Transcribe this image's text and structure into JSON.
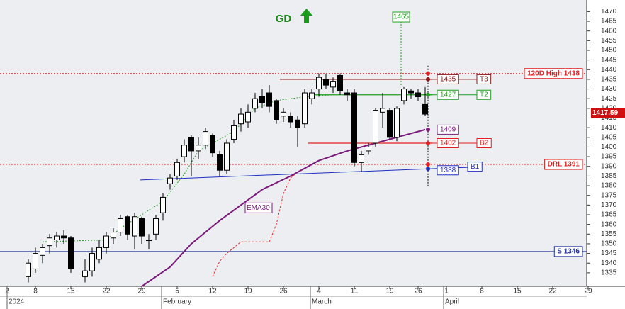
{
  "chart_data": {
    "type": "candlestick",
    "signal": "GD",
    "xlim": [
      -1,
      81.8
    ],
    "ylim": [
      1328,
      1476
    ],
    "yticks": [
      1335,
      1340,
      1345,
      1350,
      1355,
      1360,
      1365,
      1370,
      1375,
      1380,
      1385,
      1390,
      1395,
      1400,
      1405,
      1410,
      1415,
      1420,
      1425,
      1430,
      1435,
      1440,
      1445,
      1450,
      1455,
      1460,
      1465,
      1470
    ],
    "xticks": [
      {
        "value": 0,
        "label": "2"
      },
      {
        "value": 4,
        "label": "8"
      },
      {
        "value": 9,
        "label": "15"
      },
      {
        "value": 14,
        "label": "22"
      },
      {
        "value": 19,
        "label": "29"
      },
      {
        "value": 24,
        "label": "5"
      },
      {
        "value": 29,
        "label": "12"
      },
      {
        "value": 34,
        "label": "19"
      },
      {
        "value": 39,
        "label": "26"
      },
      {
        "value": 44,
        "label": "4"
      },
      {
        "value": 49,
        "label": "11"
      },
      {
        "value": 54,
        "label": "19"
      },
      {
        "value": 58,
        "label": "26"
      },
      {
        "value": 62,
        "label": "1"
      },
      {
        "value": 67,
        "label": "8"
      },
      {
        "value": 72,
        "label": "15"
      },
      {
        "value": 77,
        "label": "22"
      },
      {
        "value": 82,
        "label": "29"
      }
    ],
    "periods": [
      {
        "value": 0,
        "label": "2024"
      },
      {
        "value": 21.8,
        "label": "February"
      },
      {
        "value": 42.8,
        "label": "March"
      },
      {
        "value": 61.6,
        "label": "April"
      }
    ],
    "x": [
      3,
      4,
      5,
      6,
      7,
      8,
      9,
      11,
      12,
      13,
      14,
      15,
      16,
      17,
      18,
      19,
      20,
      21,
      22,
      23,
      24,
      25,
      26,
      27,
      28,
      29,
      30,
      31,
      32,
      33,
      34,
      35,
      36,
      37,
      38,
      39,
      40,
      41,
      42,
      43,
      44,
      45,
      46,
      47,
      48,
      49,
      50,
      51,
      52,
      53,
      54,
      55,
      56,
      57,
      58,
      59
    ],
    "open": [
      1333,
      1337,
      1344,
      1349,
      1352,
      1354,
      1353,
      1333,
      1336,
      1342,
      1348,
      1353,
      1356,
      1364,
      1354,
      1363,
      1352,
      1355,
      1366,
      1381,
      1385,
      1395,
      1405,
      1398,
      1401,
      1406,
      1396,
      1388,
      1404,
      1412,
      1413,
      1420,
      1426,
      1428,
      1424,
      1416,
      1416,
      1414,
      1412,
      1425,
      1430,
      1435,
      1431,
      1437,
      1428,
      1428,
      1392,
      1398,
      1402,
      1418,
      1419,
      1405,
      1424,
      1429,
      1428,
      1422
    ],
    "high": [
      1342,
      1348,
      1350,
      1355,
      1356,
      1357,
      1354,
      1342,
      1348,
      1352,
      1356,
      1358,
      1365,
      1365,
      1366,
      1364,
      1355,
      1365,
      1376,
      1386,
      1394,
      1404,
      1406,
      1405,
      1410,
      1407,
      1398,
      1404,
      1414,
      1420,
      1422,
      1428,
      1430,
      1432,
      1425,
      1420,
      1418,
      1416,
      1430,
      1430,
      1438,
      1438,
      1436,
      1438,
      1430,
      1430,
      1398,
      1402,
      1420,
      1428,
      1420,
      1421,
      1431,
      1430,
      1430,
      1431
    ],
    "low": [
      1330,
      1335,
      1340,
      1345,
      1348,
      1350,
      1335,
      1330,
      1333,
      1340,
      1345,
      1350,
      1354,
      1352,
      1347,
      1350,
      1347,
      1352,
      1362,
      1378,
      1383,
      1392,
      1385,
      1394,
      1399,
      1395,
      1385,
      1386,
      1402,
      1408,
      1410,
      1418,
      1420,
      1418,
      1412,
      1413,
      1410,
      1400,
      1410,
      1422,
      1426,
      1430,
      1428,
      1427,
      1424,
      1390,
      1387,
      1396,
      1400,
      1410,
      1404,
      1403,
      1422,
      1425,
      1424,
      1416
    ],
    "close": [
      1340,
      1345,
      1348,
      1353,
      1354,
      1353,
      1337,
      1336,
      1345,
      1348,
      1354,
      1356,
      1363,
      1355,
      1364,
      1354,
      1352,
      1363,
      1374,
      1384,
      1392,
      1401,
      1398,
      1401,
      1408,
      1397,
      1388,
      1402,
      1411,
      1417,
      1418,
      1425,
      1423,
      1421,
      1414,
      1418,
      1413,
      1410,
      1428,
      1428,
      1436,
      1432,
      1434,
      1429,
      1427,
      1392,
      1396,
      1400,
      1419,
      1420,
      1405,
      1420,
      1430,
      1428,
      1426,
      1417
    ],
    "last_price": 1417.59,
    "ema": {
      "name": "EMA30",
      "color": "#7b1a7b",
      "x": [
        19,
        23,
        26,
        30,
        33,
        36,
        40,
        44,
        48,
        52,
        56,
        59
      ],
      "values": [
        1328,
        1338,
        1350,
        1362,
        1370,
        1378,
        1385,
        1393,
        1398,
        1402,
        1406,
        1409
      ],
      "label": "1409"
    },
    "stop": {
      "color": "#e03030",
      "x": [
        29,
        30,
        31,
        33,
        37,
        38,
        39,
        40,
        41
      ],
      "values": [
        1333,
        1341,
        1345,
        1351,
        1351,
        1360,
        1376,
        1384,
        1387
      ]
    },
    "trail": {
      "color": "#2a9a2a",
      "x": [
        5,
        14,
        16,
        22,
        25,
        27,
        32,
        35,
        38,
        42,
        46
      ],
      "values": [
        1351,
        1352,
        1358,
        1372,
        1386,
        1398,
        1408,
        1420,
        1424,
        1426,
        1427
      ]
    },
    "levels": [
      {
        "label": "120D High 1438",
        "value": 1438,
        "color": "#e02020",
        "style": "dotted"
      },
      {
        "label": "DRL 1391",
        "value": 1391,
        "color": "#e02020",
        "style": "dotted"
      },
      {
        "label": "S 1346",
        "value": 1346,
        "color": "#2030a0",
        "style": "solid"
      }
    ],
    "targets": [
      {
        "label": "1435",
        "tag": "T3",
        "value": 1435,
        "color": "#8b1a1a",
        "x0": 38.5,
        "x1": 60
      },
      {
        "label": "1427",
        "tag": "T2",
        "value": 1427,
        "color": "#20a020",
        "x0": 43,
        "x1": 60
      },
      {
        "label": "1402",
        "tag": "B2",
        "value": 1402,
        "color": "#e02020",
        "x0": 42.5,
        "x1": 60
      }
    ],
    "trendline": {
      "label": "1388",
      "tag": "B1",
      "color": "#2030c0",
      "x": [
        18.8,
        65
      ],
      "values": [
        1383,
        1389.5
      ]
    },
    "peak": {
      "label": "1465",
      "x": 55.6,
      "value": 1465,
      "from": 1432,
      "color": "#20a020"
    }
  }
}
